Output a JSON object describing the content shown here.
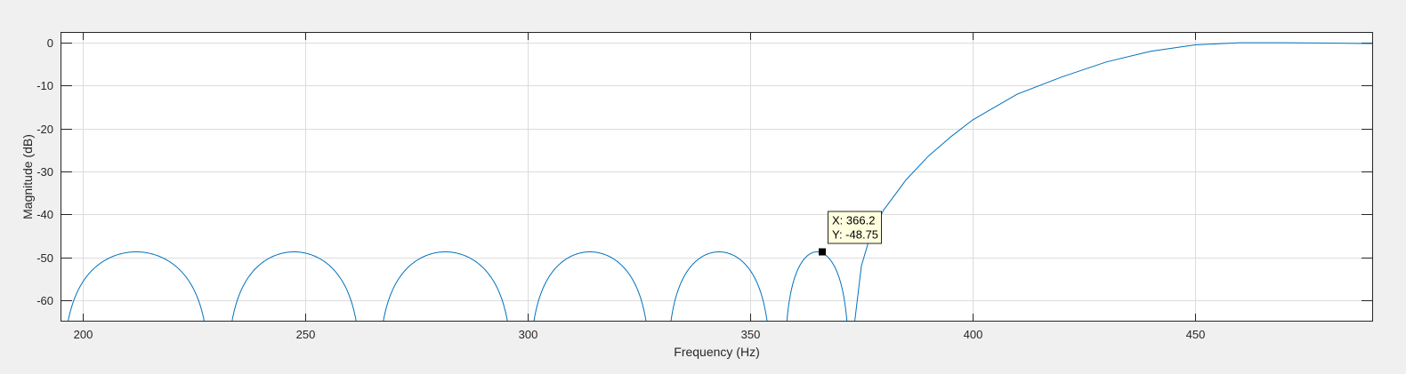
{
  "figure": {
    "background": "#f0f0f0"
  },
  "chart_data": {
    "type": "line",
    "title": "",
    "xlabel": "Frequency (Hz)",
    "ylabel": "Magnitude (dB)",
    "xlim": [
      195,
      490
    ],
    "ylim": [
      -65,
      2.5
    ],
    "xticks": [
      200,
      250,
      300,
      350,
      400,
      450
    ],
    "yticks": [
      0,
      -10,
      -20,
      -30,
      -40,
      -50,
      -60
    ],
    "xtick_labels": [
      "200",
      "250",
      "300",
      "350",
      "400",
      "450"
    ],
    "ytick_labels": [
      "0",
      "-10",
      "-20",
      "-30",
      "-40",
      "-50",
      "-60"
    ],
    "grid": true,
    "line_color": "#0072bd",
    "grid_color": "#dcdcdc",
    "stopband_lobes": [
      {
        "from": 195,
        "to": 229,
        "peak_x": 212.5,
        "peak_y": -48.75
      },
      {
        "from": 232,
        "to": 263,
        "peak_x": 248,
        "peak_y": -48.75
      },
      {
        "from": 266,
        "to": 297,
        "peak_x": 282,
        "peak_y": -48.75
      },
      {
        "from": 300,
        "to": 328,
        "peak_x": 314,
        "peak_y": -48.75
      },
      {
        "from": 331,
        "to": 355,
        "peak_x": 343.5,
        "peak_y": -48.75
      },
      {
        "from": 357.5,
        "to": 372.5,
        "peak_x": 366.2,
        "peak_y": -48.75
      }
    ],
    "passband": [
      [
        373.5,
        -65
      ],
      [
        375,
        -52
      ],
      [
        377,
        -45
      ],
      [
        380,
        -39
      ],
      [
        385,
        -32
      ],
      [
        390,
        -26.5
      ],
      [
        395,
        -22
      ],
      [
        400,
        -18
      ],
      [
        410,
        -12
      ],
      [
        420,
        -8
      ],
      [
        430,
        -4.5
      ],
      [
        440,
        -2
      ],
      [
        450,
        -0.5
      ],
      [
        460,
        0
      ],
      [
        470,
        0
      ],
      [
        480,
        -0.1
      ],
      [
        490,
        -0.2
      ]
    ],
    "datatip": {
      "x": 366.2,
      "y": -48.75,
      "x_text": "X: 366.2",
      "y_text": "Y: -48.75"
    }
  }
}
